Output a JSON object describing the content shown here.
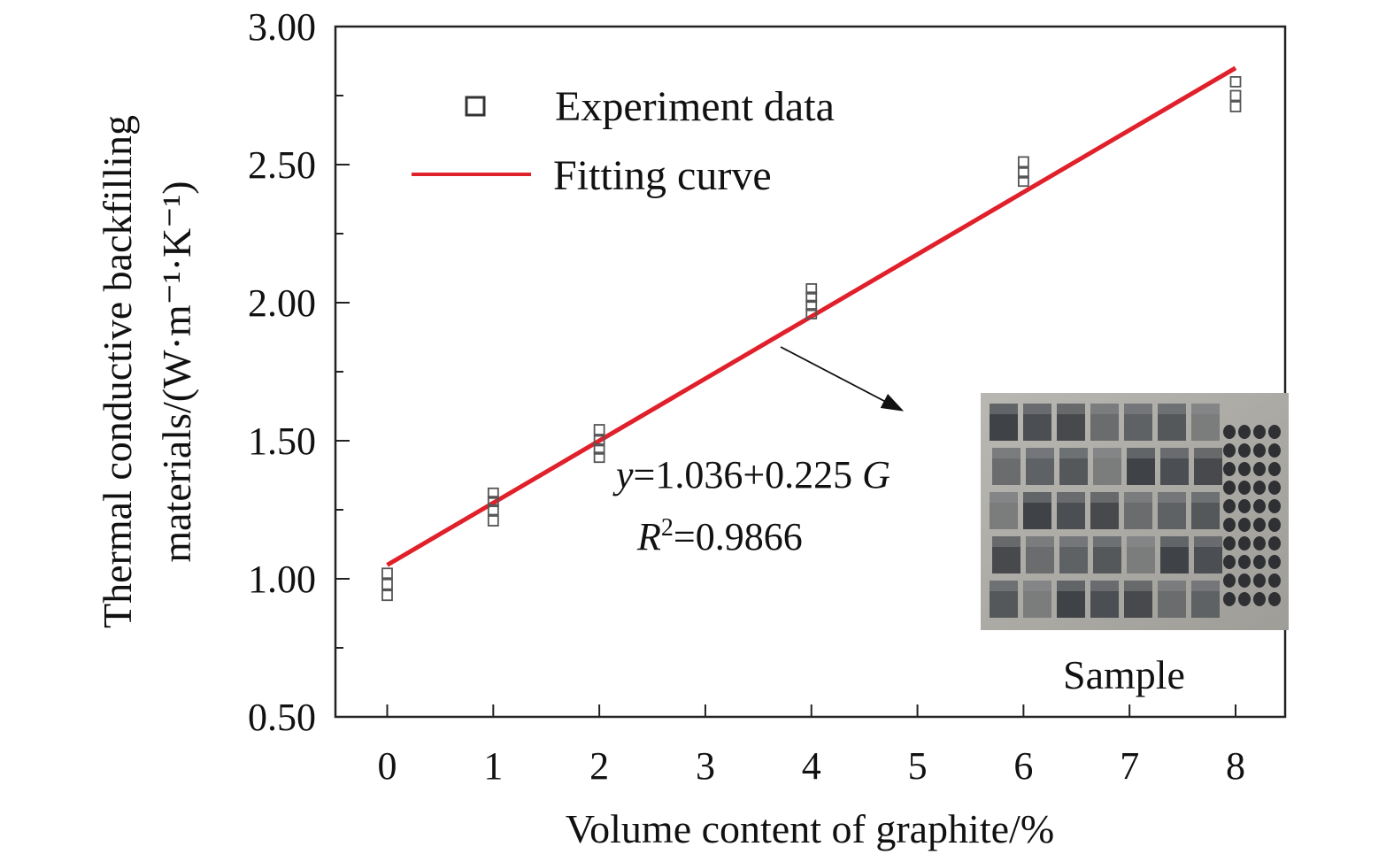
{
  "chart_data": {
    "type": "scatter",
    "xlabel": "Volume content of graphite/%",
    "ylabel_line1": "Thermal conductive backfilling",
    "ylabel_line2": "materials/(W·m⁻¹·K⁻¹)",
    "xlim": [
      -0.5,
      8.5
    ],
    "ylim": [
      0.5,
      3.0
    ],
    "x_ticks": [
      0,
      1,
      2,
      3,
      4,
      5,
      6,
      7,
      8
    ],
    "x_tick_labels": [
      "0",
      "1",
      "2",
      "3",
      "4",
      "5",
      "6",
      "7",
      "8"
    ],
    "y_ticks": [
      0.5,
      1.0,
      1.5,
      2.0,
      2.5,
      3.0
    ],
    "y_tick_labels": [
      "0.50",
      "1.00",
      "1.50",
      "2.00",
      "2.50",
      "3.00"
    ],
    "y_minor_ticks": [
      0.75,
      1.25,
      1.75,
      2.25,
      2.75
    ],
    "grid": false,
    "series": [
      {
        "name": "Experiment data",
        "type": "scatter",
        "marker": "open-square",
        "color": "#444444",
        "points": [
          [
            0,
            1.02
          ],
          [
            0,
            0.98
          ],
          [
            0,
            0.94
          ],
          [
            1,
            1.31
          ],
          [
            1,
            1.28
          ],
          [
            1,
            1.25
          ],
          [
            1,
            1.21
          ],
          [
            2,
            1.54
          ],
          [
            2,
            1.5
          ],
          [
            2,
            1.47
          ],
          [
            2,
            1.44
          ],
          [
            4,
            2.05
          ],
          [
            4,
            2.02
          ],
          [
            4,
            1.99
          ],
          [
            4,
            1.96
          ],
          [
            6,
            2.51
          ],
          [
            6,
            2.47
          ],
          [
            6,
            2.44
          ],
          [
            8,
            2.8
          ],
          [
            8,
            2.75
          ],
          [
            8,
            2.71
          ]
        ]
      },
      {
        "name": "Fitting curve",
        "type": "line",
        "color": "#e0202a",
        "x": [
          0,
          8
        ],
        "y": [
          1.05,
          2.85
        ]
      }
    ],
    "legend_placement": "top-left",
    "equation_line1_y": "y",
    "equation_line1_mid": "=1.036+0.225 ",
    "equation_line1_g": "G",
    "equation_line2_r": "R",
    "equation_line2_sup": "2",
    "equation_line2_rest": "=0.9866",
    "inset_caption": "Sample"
  }
}
